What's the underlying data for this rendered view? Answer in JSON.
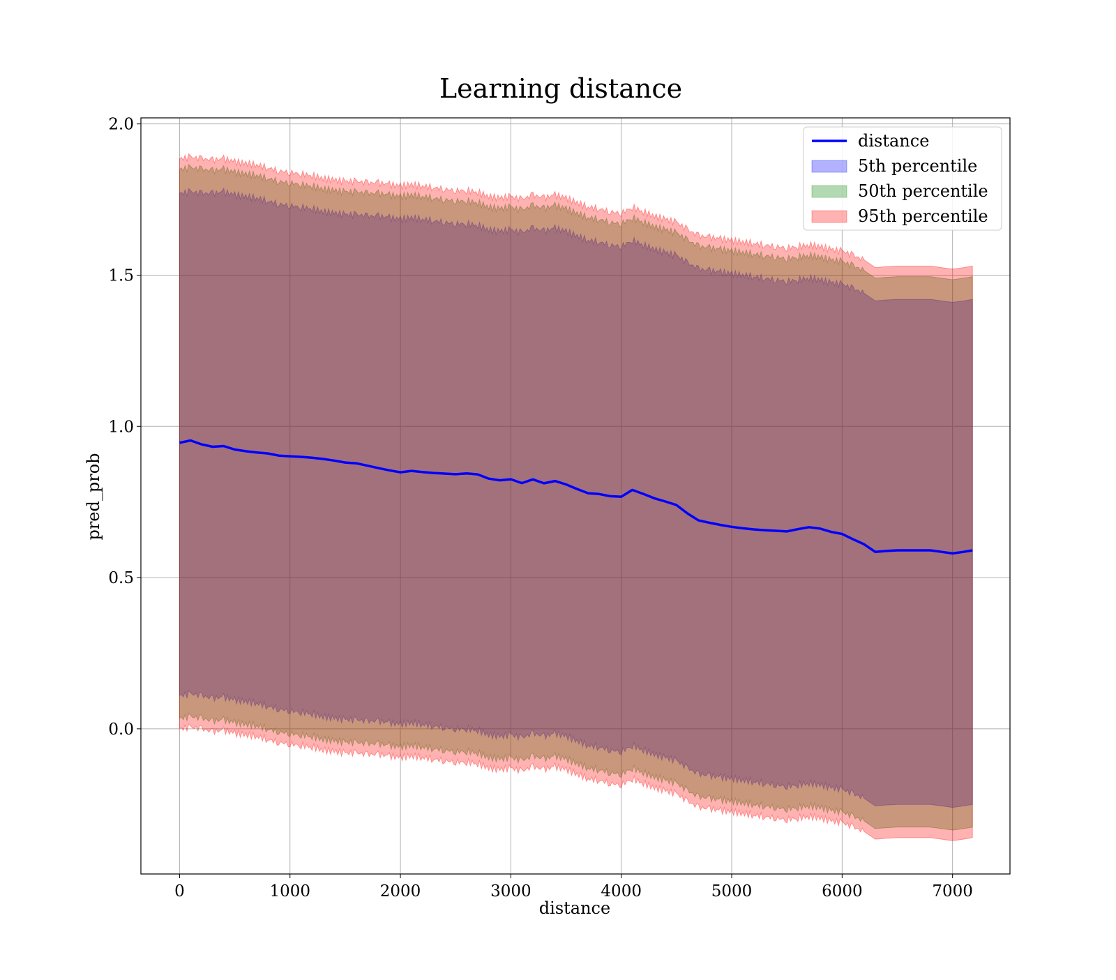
{
  "chart_data": {
    "type": "line",
    "title": "Learning distance",
    "xlabel": "distance",
    "ylabel": "pred_prob",
    "xlim": [
      -350,
      7520
    ],
    "ylim": [
      -0.48,
      2.02
    ],
    "x_ticks": [
      0,
      1000,
      2000,
      3000,
      4000,
      5000,
      6000,
      7000
    ],
    "x_tick_labels": [
      "0",
      "1000",
      "2000",
      "3000",
      "4000",
      "5000",
      "6000",
      "7000"
    ],
    "y_ticks": [
      0.0,
      0.5,
      1.0,
      1.5,
      2.0
    ],
    "y_tick_labels": [
      "0.0",
      "0.5",
      "1.0",
      "1.5",
      "2.0"
    ],
    "grid": true,
    "legend_position": "top-right",
    "x": [
      0,
      100,
      200,
      300,
      400,
      500,
      600,
      700,
      800,
      900,
      1000,
      1100,
      1200,
      1300,
      1400,
      1500,
      1600,
      1700,
      1800,
      1900,
      2000,
      2100,
      2200,
      2300,
      2400,
      2500,
      2600,
      2700,
      2800,
      2900,
      3000,
      3100,
      3200,
      3300,
      3400,
      3500,
      3600,
      3700,
      3800,
      3900,
      4000,
      4100,
      4200,
      4300,
      4400,
      4500,
      4600,
      4700,
      4800,
      4900,
      5000,
      5100,
      5200,
      5300,
      5400,
      5500,
      5600,
      5700,
      5800,
      5900,
      6000,
      6100,
      6200,
      6300,
      6400,
      6500,
      6600,
      6700,
      6800,
      6900,
      7000,
      7100,
      7180
    ],
    "series": [
      {
        "name": "distance",
        "kind": "line",
        "color": "#0000ff",
        "values": [
          0.94,
          0.95,
          0.94,
          0.935,
          0.94,
          0.93,
          0.925,
          0.92,
          0.915,
          0.905,
          0.9,
          0.895,
          0.89,
          0.885,
          0.88,
          0.875,
          0.875,
          0.87,
          0.865,
          0.86,
          0.855,
          0.86,
          0.855,
          0.85,
          0.845,
          0.84,
          0.84,
          0.835,
          0.82,
          0.815,
          0.82,
          0.81,
          0.825,
          0.815,
          0.825,
          0.815,
          0.8,
          0.785,
          0.78,
          0.77,
          0.765,
          0.785,
          0.77,
          0.755,
          0.745,
          0.735,
          0.71,
          0.69,
          0.685,
          0.68,
          0.675,
          0.67,
          0.665,
          0.66,
          0.655,
          0.65,
          0.655,
          0.66,
          0.655,
          0.645,
          0.64,
          0.625,
          0.61,
          0.585,
          0.588,
          0.59,
          0.59,
          0.59,
          0.59,
          0.585,
          0.58,
          0.585,
          0.59
        ]
      },
      {
        "name": "5th percentile",
        "kind": "band",
        "color": "#0000ff",
        "opacity": 0.3,
        "upper": [
          1.77,
          1.775,
          1.77,
          1.77,
          1.775,
          1.765,
          1.76,
          1.755,
          1.745,
          1.735,
          1.73,
          1.725,
          1.72,
          1.71,
          1.705,
          1.7,
          1.7,
          1.695,
          1.695,
          1.69,
          1.685,
          1.69,
          1.685,
          1.68,
          1.675,
          1.67,
          1.67,
          1.665,
          1.65,
          1.645,
          1.65,
          1.64,
          1.655,
          1.645,
          1.655,
          1.645,
          1.63,
          1.615,
          1.61,
          1.6,
          1.595,
          1.615,
          1.6,
          1.585,
          1.575,
          1.565,
          1.54,
          1.52,
          1.515,
          1.51,
          1.505,
          1.5,
          1.495,
          1.49,
          1.485,
          1.48,
          1.485,
          1.49,
          1.485,
          1.475,
          1.47,
          1.455,
          1.44,
          1.415,
          1.418,
          1.42,
          1.42,
          1.42,
          1.42,
          1.415,
          1.41,
          1.415,
          1.42
        ],
        "lower": [
          0.11,
          0.115,
          0.11,
          0.1,
          0.105,
          0.095,
          0.09,
          0.085,
          0.075,
          0.065,
          0.06,
          0.055,
          0.05,
          0.04,
          0.035,
          0.03,
          0.03,
          0.025,
          0.025,
          0.02,
          0.015,
          0.02,
          0.015,
          0.01,
          0.005,
          0.0,
          0.0,
          -0.005,
          -0.02,
          -0.025,
          -0.02,
          -0.03,
          -0.015,
          -0.025,
          -0.015,
          -0.025,
          -0.04,
          -0.055,
          -0.06,
          -0.07,
          -0.075,
          -0.055,
          -0.07,
          -0.085,
          -0.095,
          -0.105,
          -0.13,
          -0.15,
          -0.155,
          -0.16,
          -0.165,
          -0.17,
          -0.175,
          -0.18,
          -0.185,
          -0.19,
          -0.185,
          -0.18,
          -0.185,
          -0.195,
          -0.2,
          -0.215,
          -0.23,
          -0.255,
          -0.252,
          -0.25,
          -0.25,
          -0.25,
          -0.25,
          -0.255,
          -0.26,
          -0.255,
          -0.25
        ]
      },
      {
        "name": "50th percentile",
        "kind": "band",
        "color": "#008000",
        "opacity": 0.3,
        "upper": [
          1.85,
          1.855,
          1.85,
          1.845,
          1.85,
          1.84,
          1.835,
          1.83,
          1.82,
          1.81,
          1.805,
          1.8,
          1.795,
          1.785,
          1.78,
          1.775,
          1.775,
          1.77,
          1.77,
          1.765,
          1.76,
          1.765,
          1.76,
          1.755,
          1.75,
          1.745,
          1.745,
          1.74,
          1.725,
          1.72,
          1.725,
          1.715,
          1.73,
          1.72,
          1.73,
          1.72,
          1.705,
          1.69,
          1.685,
          1.675,
          1.67,
          1.69,
          1.675,
          1.66,
          1.65,
          1.64,
          1.615,
          1.595,
          1.59,
          1.585,
          1.58,
          1.575,
          1.57,
          1.565,
          1.56,
          1.555,
          1.56,
          1.565,
          1.56,
          1.55,
          1.545,
          1.53,
          1.515,
          1.49,
          1.493,
          1.495,
          1.495,
          1.495,
          1.495,
          1.49,
          1.485,
          1.49,
          1.495
        ],
        "lower": [
          0.035,
          0.04,
          0.035,
          0.025,
          0.03,
          0.02,
          0.015,
          0.01,
          0.0,
          -0.01,
          -0.015,
          -0.02,
          -0.025,
          -0.035,
          -0.04,
          -0.045,
          -0.045,
          -0.05,
          -0.05,
          -0.055,
          -0.06,
          -0.055,
          -0.06,
          -0.065,
          -0.07,
          -0.075,
          -0.075,
          -0.08,
          -0.095,
          -0.1,
          -0.095,
          -0.105,
          -0.09,
          -0.1,
          -0.09,
          -0.1,
          -0.115,
          -0.13,
          -0.135,
          -0.145,
          -0.15,
          -0.13,
          -0.145,
          -0.16,
          -0.17,
          -0.18,
          -0.205,
          -0.225,
          -0.23,
          -0.235,
          -0.24,
          -0.245,
          -0.25,
          -0.255,
          -0.26,
          -0.265,
          -0.26,
          -0.255,
          -0.26,
          -0.27,
          -0.275,
          -0.29,
          -0.305,
          -0.33,
          -0.327,
          -0.325,
          -0.325,
          -0.325,
          -0.325,
          -0.33,
          -0.335,
          -0.33,
          -0.325
        ]
      },
      {
        "name": "95th percentile",
        "kind": "band",
        "color": "#ff0000",
        "opacity": 0.3,
        "upper": [
          1.885,
          1.89,
          1.885,
          1.88,
          1.885,
          1.875,
          1.87,
          1.865,
          1.855,
          1.845,
          1.84,
          1.835,
          1.83,
          1.82,
          1.815,
          1.81,
          1.81,
          1.805,
          1.805,
          1.8,
          1.795,
          1.8,
          1.795,
          1.79,
          1.785,
          1.78,
          1.78,
          1.775,
          1.76,
          1.755,
          1.76,
          1.75,
          1.765,
          1.755,
          1.765,
          1.755,
          1.74,
          1.725,
          1.72,
          1.71,
          1.705,
          1.725,
          1.71,
          1.695,
          1.685,
          1.675,
          1.65,
          1.63,
          1.625,
          1.62,
          1.615,
          1.61,
          1.605,
          1.6,
          1.595,
          1.59,
          1.595,
          1.6,
          1.595,
          1.585,
          1.58,
          1.565,
          1.55,
          1.525,
          1.528,
          1.53,
          1.53,
          1.53,
          1.53,
          1.525,
          1.52,
          1.525,
          1.53
        ],
        "lower": [
          0.0,
          0.005,
          0.0,
          -0.01,
          -0.005,
          -0.015,
          -0.02,
          -0.025,
          -0.035,
          -0.045,
          -0.05,
          -0.055,
          -0.06,
          -0.07,
          -0.075,
          -0.08,
          -0.08,
          -0.085,
          -0.085,
          -0.09,
          -0.095,
          -0.09,
          -0.095,
          -0.1,
          -0.105,
          -0.11,
          -0.11,
          -0.115,
          -0.13,
          -0.135,
          -0.13,
          -0.14,
          -0.125,
          -0.135,
          -0.125,
          -0.135,
          -0.15,
          -0.165,
          -0.17,
          -0.18,
          -0.185,
          -0.165,
          -0.18,
          -0.195,
          -0.205,
          -0.215,
          -0.24,
          -0.26,
          -0.265,
          -0.27,
          -0.275,
          -0.28,
          -0.285,
          -0.29,
          -0.295,
          -0.3,
          -0.295,
          -0.29,
          -0.295,
          -0.305,
          -0.31,
          -0.325,
          -0.34,
          -0.365,
          -0.362,
          -0.36,
          -0.36,
          -0.36,
          -0.36,
          -0.365,
          -0.37,
          -0.365,
          -0.36
        ]
      }
    ]
  }
}
